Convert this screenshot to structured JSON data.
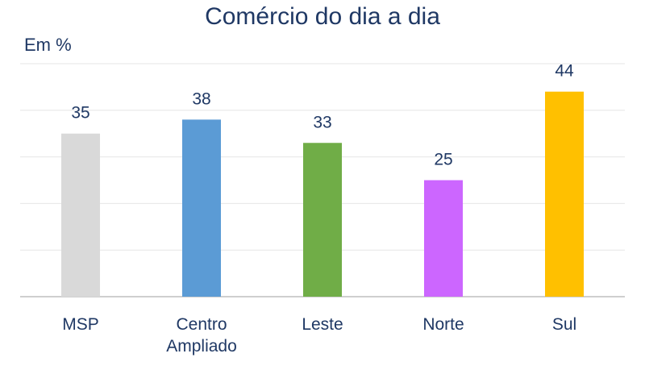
{
  "chart_data": {
    "type": "bar",
    "title": "Comércio do dia a dia",
    "ylabel": "Em %",
    "categories": [
      [
        "MSP"
      ],
      [
        "Centro",
        "Ampliado"
      ],
      [
        "Leste"
      ],
      [
        "Norte"
      ],
      [
        "Sul"
      ]
    ],
    "values": [
      35,
      38,
      33,
      25,
      44
    ],
    "colors": [
      "#d9d9d9",
      "#5b9bd5",
      "#70ad47",
      "#cc66ff",
      "#ffc000"
    ],
    "ylim": [
      0,
      50
    ],
    "grid": true,
    "legend": "none"
  }
}
